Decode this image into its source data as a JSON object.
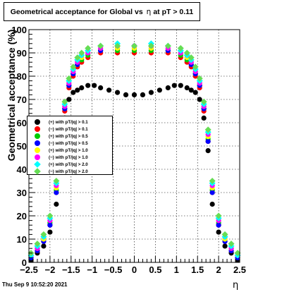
{
  "title": "Geometrical acceptance for Global vs",
  "title_symbol": "η",
  "title_suffix": "at pT > 0.11",
  "footer": "Thu Sep  9 10:52:20 2021",
  "chart_data": {
    "type": "scatter",
    "xlabel": "η",
    "ylabel": "Geometrical acceptance (%)",
    "xlim": [
      -2.5,
      2.5
    ],
    "ylim": [
      0,
      100
    ],
    "xticks": [
      "−2.5",
      "−2",
      "−1.5",
      "−1",
      "−0.5",
      "0",
      "0.5",
      "1",
      "1.5",
      "2",
      "2.5"
    ],
    "yticks": [
      "0",
      "10",
      "20",
      "30",
      "40",
      "50",
      "60",
      "70",
      "80",
      "90",
      "100"
    ],
    "grid": true,
    "legend_position": "left-middle",
    "series": [
      {
        "name": "(+) with pT/|q| > 0.1",
        "color": "#000000",
        "marker": "circle",
        "x": [
          -2.45,
          -2.3,
          -2.15,
          -2.0,
          -1.85,
          -1.75,
          -1.65,
          -1.55,
          -1.45,
          -1.35,
          -1.25,
          -1.1,
          -0.95,
          -0.8,
          -0.6,
          -0.4,
          -0.2,
          0.0,
          0.2,
          0.4,
          0.6,
          0.8,
          0.95,
          1.1,
          1.25,
          1.35,
          1.45,
          1.55,
          1.65,
          1.75,
          1.85,
          2.0,
          2.15,
          2.3,
          2.45
        ],
        "y": [
          1,
          4,
          7,
          13,
          25,
          48,
          62,
          70,
          73,
          74,
          75,
          76,
          76,
          75,
          74,
          73,
          72,
          72,
          72,
          73,
          74,
          75,
          76,
          76,
          75,
          74,
          73,
          70,
          62,
          48,
          25,
          13,
          7,
          4,
          1
        ]
      },
      {
        "name": "(−) with pT/|q| > 0.1",
        "color": "#ff0000",
        "marker": "circle",
        "x": [
          -2.45,
          -2.3,
          -2.15,
          -2.0,
          -1.85,
          -1.75,
          -1.65,
          -1.55,
          -1.45,
          -1.35,
          -1.25,
          -1.1,
          -0.8,
          -0.4,
          0.0,
          0.4,
          0.8,
          1.1,
          1.25,
          1.35,
          1.45,
          1.55,
          1.65,
          1.75,
          1.85,
          2.0,
          2.15,
          2.3,
          2.45
        ],
        "y": [
          2,
          5,
          9,
          16,
          30,
          52,
          65,
          75,
          80,
          84,
          86,
          88,
          90,
          90,
          90,
          90,
          90,
          88,
          86,
          84,
          80,
          75,
          65,
          52,
          30,
          16,
          9,
          5,
          2
        ]
      },
      {
        "name": "(+) with pT/|q| > 0.5",
        "color": "#00cc00",
        "marker": "circle",
        "x": [
          -2.45,
          -2.3,
          -2.15,
          -2.0,
          -1.85,
          -1.75,
          -1.65,
          -1.55,
          -1.45,
          -1.35,
          -1.25,
          -1.1,
          -0.8,
          -0.4,
          0.0,
          0.4,
          0.8,
          1.1,
          1.25,
          1.35,
          1.45,
          1.55,
          1.65,
          1.75,
          1.85,
          2.0,
          2.15,
          2.3,
          2.45
        ],
        "y": [
          2,
          6,
          10,
          17,
          31,
          53,
          66,
          76,
          81,
          85,
          87,
          89,
          91,
          91,
          91,
          91,
          91,
          89,
          87,
          85,
          81,
          76,
          66,
          53,
          31,
          17,
          10,
          6,
          2
        ]
      },
      {
        "name": "(−) with pT/|q| > 0.5",
        "color": "#0000ff",
        "marker": "circle",
        "x": [
          -2.45,
          -2.3,
          -2.15,
          -2.0,
          -1.85,
          -1.75,
          -1.65,
          -1.55,
          -1.45,
          -1.35,
          -1.25,
          -1.1,
          -0.8,
          -0.4,
          0.0,
          0.4,
          0.8,
          1.1,
          1.25,
          1.35,
          1.45,
          1.55,
          1.65,
          1.75,
          1.85,
          2.0,
          2.15,
          2.3,
          2.45
        ],
        "y": [
          2,
          5,
          9,
          16,
          30,
          52,
          66,
          76,
          81,
          85,
          88,
          90,
          91,
          92,
          92,
          92,
          91,
          90,
          88,
          85,
          81,
          76,
          66,
          52,
          30,
          16,
          9,
          5,
          2
        ]
      },
      {
        "name": "(+) with pT/|q| > 1.0",
        "color": "#ffff00",
        "marker": "circle",
        "x": [
          -2.45,
          -2.3,
          -2.15,
          -2.0,
          -1.85,
          -1.75,
          -1.65,
          -1.55,
          -1.45,
          -1.35,
          -1.25,
          -1.1,
          -0.8,
          -0.4,
          0.0,
          0.4,
          0.8,
          1.1,
          1.25,
          1.35,
          1.45,
          1.55,
          1.65,
          1.75,
          1.85,
          2.0,
          2.15,
          2.3,
          2.45
        ],
        "y": [
          3,
          6,
          10,
          18,
          32,
          54,
          67,
          77,
          82,
          86,
          88,
          90,
          92,
          92,
          92,
          92,
          92,
          90,
          88,
          86,
          82,
          77,
          67,
          54,
          32,
          18,
          10,
          6,
          3
        ]
      },
      {
        "name": "(−) with pT/|q| > 1.0",
        "color": "#ff00ff",
        "marker": "circle",
        "x": [
          -2.45,
          -2.3,
          -2.15,
          -2.0,
          -1.85,
          -1.75,
          -1.65,
          -1.55,
          -1.45,
          -1.35,
          -1.25,
          -1.1,
          -0.8,
          -0.4,
          0.0,
          0.4,
          0.8,
          1.1,
          1.25,
          1.35,
          1.45,
          1.55,
          1.65,
          1.75,
          1.85,
          2.0,
          2.15,
          2.3,
          2.45
        ],
        "y": [
          3,
          6,
          11,
          18,
          33,
          55,
          67,
          77,
          82,
          86,
          89,
          90,
          92,
          93,
          93,
          93,
          92,
          90,
          89,
          86,
          82,
          77,
          67,
          55,
          33,
          18,
          11,
          6,
          3
        ]
      },
      {
        "name": "(+) with pT/|q| > 2.0",
        "color": "#00ffff",
        "marker": "diamond",
        "x": [
          -2.45,
          -2.3,
          -2.15,
          -2.0,
          -1.85,
          -1.75,
          -1.65,
          -1.55,
          -1.45,
          -1.35,
          -1.25,
          -1.1,
          -0.8,
          -0.4,
          0.0,
          0.4,
          0.8,
          1.1,
          1.25,
          1.35,
          1.45,
          1.55,
          1.65,
          1.75,
          1.85,
          2.0,
          2.15,
          2.3,
          2.45
        ],
        "y": [
          3,
          7,
          11,
          19,
          34,
          56,
          68,
          78,
          83,
          87,
          89,
          91,
          93,
          94,
          93,
          94,
          93,
          91,
          89,
          87,
          83,
          78,
          68,
          56,
          34,
          19,
          11,
          7,
          3
        ]
      },
      {
        "name": "(−) with pT/|q| > 2.0",
        "color": "#66dd55",
        "marker": "diamond",
        "x": [
          -2.45,
          -2.3,
          -2.15,
          -2.0,
          -1.85,
          -1.75,
          -1.65,
          -1.55,
          -1.45,
          -1.35,
          -1.25,
          -1.1,
          -0.8,
          -0.4,
          0.0,
          0.4,
          0.8,
          1.1,
          1.25,
          1.35,
          1.45,
          1.55,
          1.65,
          1.75,
          1.85,
          2.0,
          2.15,
          2.3,
          2.45
        ],
        "y": [
          4,
          8,
          12,
          20,
          35,
          57,
          69,
          79,
          84,
          88,
          90,
          92,
          93,
          93,
          93,
          93,
          93,
          92,
          90,
          88,
          84,
          79,
          69,
          57,
          35,
          20,
          12,
          8,
          4
        ]
      }
    ]
  }
}
